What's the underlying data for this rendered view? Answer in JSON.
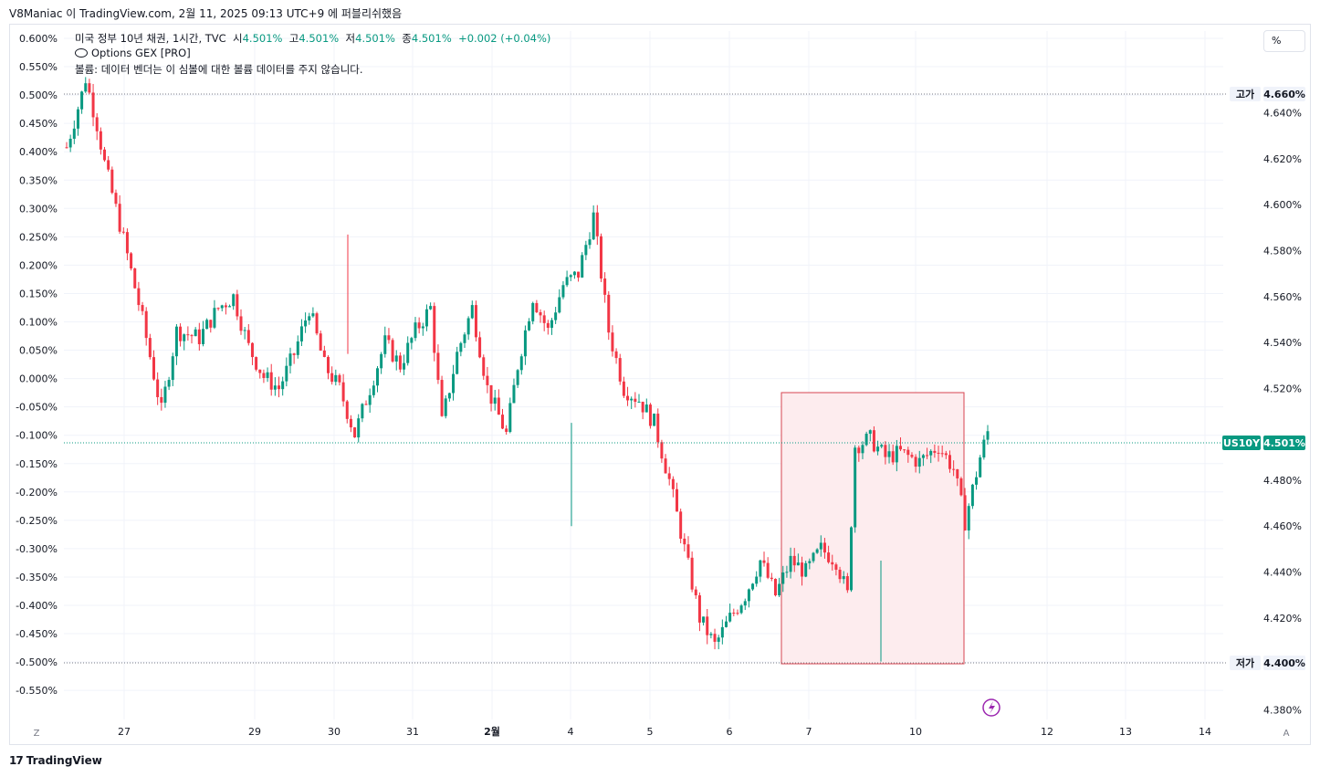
{
  "header": {
    "title": "V8Maniac 이 TradingView.com, 2월 11, 2025 09:13 UTC+9 에 퍼블리쉬했음"
  },
  "legend": {
    "symbol": "미국 정부 10년 채권, 1시간, TVC",
    "o_label": "시",
    "o": "4.501%",
    "h_label": "고",
    "h": "4.501%",
    "l_label": "저",
    "l": "4.501%",
    "c_label": "종",
    "c": "4.501%",
    "change": "+0.002 (+0.04%)",
    "indicator": "Options GEX [PRO]",
    "volume_note": "볼륨: 데이터 벤더는 이 심볼에 대한 볼륨 데이터를 주지 않습니다."
  },
  "pct_button": "%",
  "footer": {
    "brand": "TradingView"
  },
  "colors": {
    "up": "#089981",
    "down": "#f23645",
    "grid": "#f0f3fa",
    "box_stroke": "#d64550",
    "box_fill": "#fdecee",
    "last_price_bg": "#089981"
  },
  "chart_data": {
    "type": "candlestick",
    "symbol": "US10Y",
    "timeframe": "1시간",
    "left_axis": {
      "unit": "%change",
      "ticks": [
        "0.600%",
        "0.550%",
        "0.500%",
        "0.450%",
        "0.400%",
        "0.350%",
        "0.300%",
        "0.250%",
        "0.200%",
        "0.150%",
        "0.100%",
        "0.050%",
        "0.000%",
        "-0.050%",
        "-0.100%",
        "-0.150%",
        "-0.200%",
        "-0.250%",
        "-0.300%",
        "-0.350%",
        "-0.400%",
        "-0.450%",
        "-0.500%",
        "-0.550%"
      ]
    },
    "right_axis": {
      "ticks": [
        "4.640%",
        "4.620%",
        "4.600%",
        "4.580%",
        "4.560%",
        "4.540%",
        "4.520%",
        "4.480%",
        "4.460%",
        "4.440%",
        "4.420%",
        "4.380%"
      ],
      "ylim": [
        4.375,
        4.678
      ]
    },
    "x_ticks": [
      "27",
      "29",
      "30",
      "31",
      "2월",
      "4",
      "5",
      "6",
      "7",
      "10",
      "12",
      "13",
      "14"
    ],
    "x_corner_left": "Z",
    "x_corner_right": "A",
    "high": {
      "label": "고가",
      "value": "4.660%",
      "pct": "0.500%"
    },
    "low": {
      "label": "저가",
      "value": "4.400%",
      "pct": "-0.500%"
    },
    "last": {
      "label": "US10Y",
      "value": "4.501%",
      "pct": -0.112
    },
    "anchors": [
      [
        0,
        4.625
      ],
      [
        8,
        4.648
      ],
      [
        10,
        4.655
      ],
      [
        16,
        4.635
      ],
      [
        20,
        4.618
      ],
      [
        30,
        4.585
      ],
      [
        40,
        4.55
      ],
      [
        50,
        4.51
      ],
      [
        58,
        4.545
      ],
      [
        70,
        4.542
      ],
      [
        80,
        4.555
      ],
      [
        88,
        4.56
      ],
      [
        96,
        4.538
      ],
      [
        104,
        4.525
      ],
      [
        112,
        4.52
      ],
      [
        120,
        4.535
      ],
      [
        128,
        4.555
      ],
      [
        136,
        4.53
      ],
      [
        144,
        4.52
      ],
      [
        152,
        4.5
      ],
      [
        160,
        4.52
      ],
      [
        168,
        4.54
      ],
      [
        176,
        4.53
      ],
      [
        184,
        4.545
      ],
      [
        192,
        4.555
      ],
      [
        198,
        4.505
      ],
      [
        206,
        4.535
      ],
      [
        214,
        4.555
      ],
      [
        222,
        4.52
      ],
      [
        232,
        4.5
      ],
      [
        238,
        4.53
      ],
      [
        246,
        4.56
      ],
      [
        254,
        4.545
      ],
      [
        262,
        4.565
      ],
      [
        270,
        4.57
      ],
      [
        278,
        4.595
      ],
      [
        286,
        4.545
      ],
      [
        294,
        4.52
      ],
      [
        302,
        4.515
      ],
      [
        310,
        4.505
      ],
      [
        318,
        4.48
      ],
      [
        326,
        4.45
      ],
      [
        334,
        4.42
      ],
      [
        342,
        4.408
      ],
      [
        350,
        4.42
      ],
      [
        358,
        4.43
      ],
      [
        366,
        4.445
      ],
      [
        374,
        4.43
      ],
      [
        382,
        4.445
      ],
      [
        390,
        4.44
      ],
      [
        398,
        4.45
      ],
      [
        406,
        4.445
      ],
      [
        412,
        4.43
      ],
      [
        416,
        4.495
      ],
      [
        424,
        4.498
      ],
      [
        432,
        4.49
      ],
      [
        440,
        4.492
      ],
      [
        450,
        4.488
      ],
      [
        460,
        4.495
      ],
      [
        468,
        4.485
      ],
      [
        474,
        4.462
      ],
      [
        482,
        4.49
      ],
      [
        486,
        4.501
      ]
    ],
    "total_bars": 486,
    "annotation_box": {
      "x_from": "2월 6일 밤",
      "x_to": "2월 10일",
      "y_top": 4.522,
      "y_bottom": 4.4
    }
  }
}
